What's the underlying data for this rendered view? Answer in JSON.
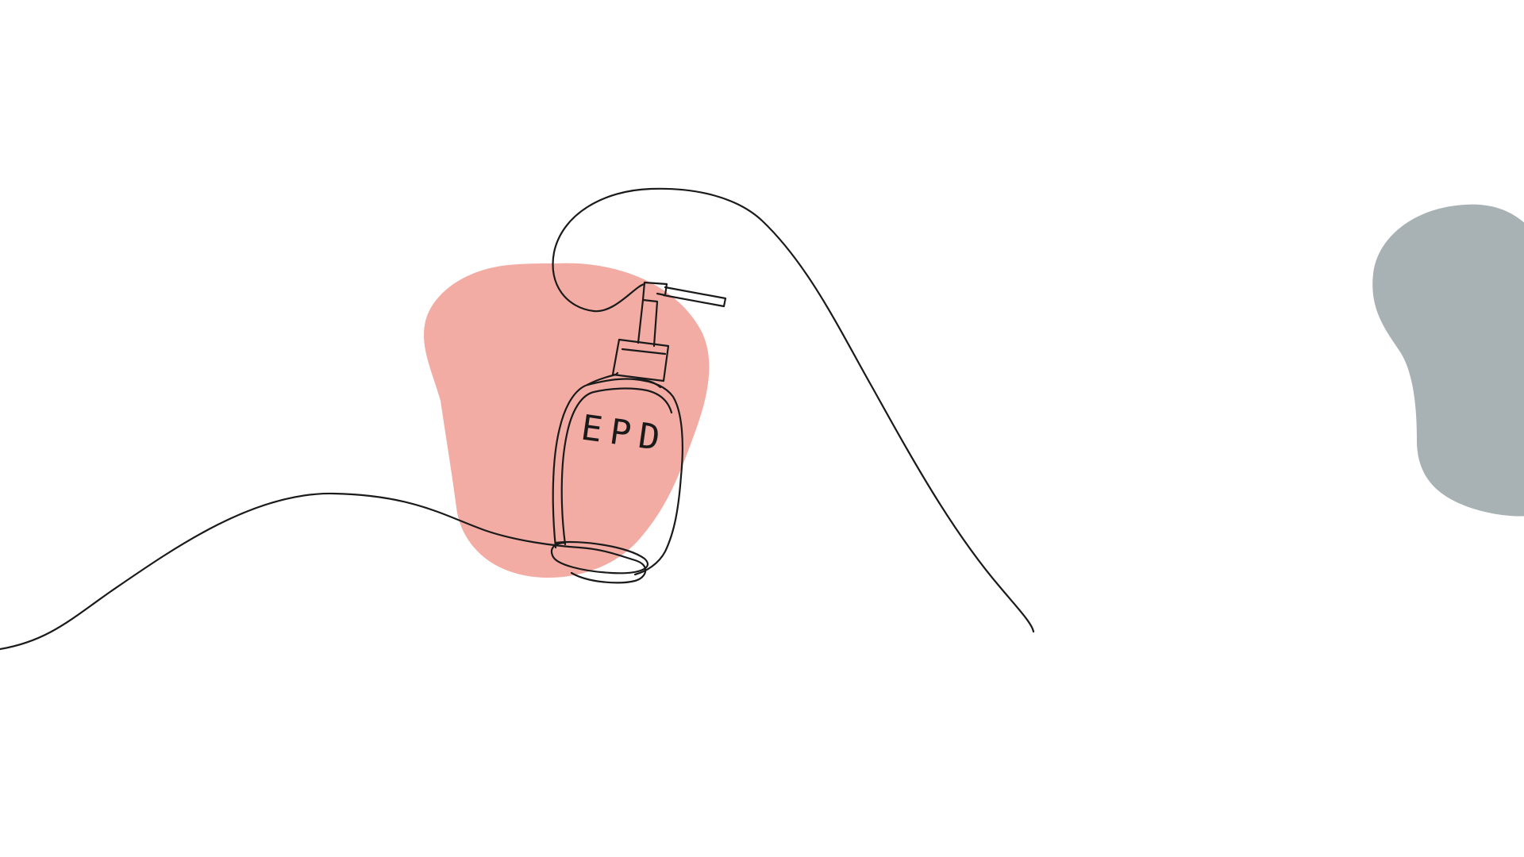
{
  "illustration": {
    "bottle_label": "EPD"
  },
  "colors": {
    "background": "#ffffff",
    "coral_blob": "#f3aca3",
    "gray_blob": "#a8b1b3",
    "line": "#1a1a1a"
  },
  "icons": {
    "bottle": "pump-bottle-icon"
  }
}
